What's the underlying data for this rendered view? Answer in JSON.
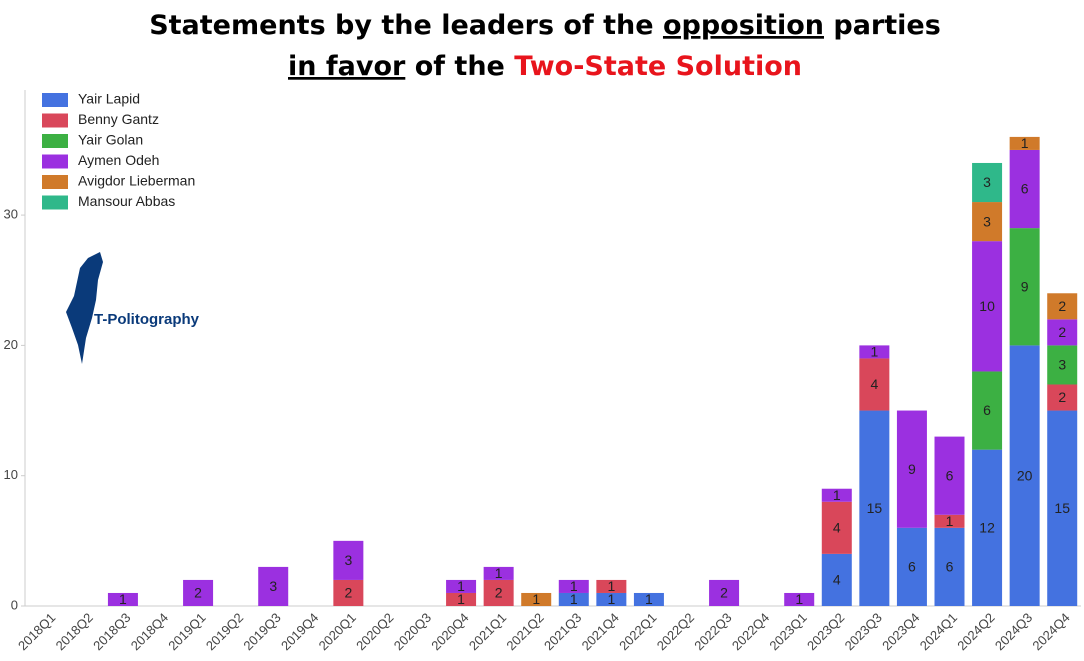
{
  "chart_data": {
    "type": "stacked_bar",
    "title_parts": [
      "Statements by the leaders of the ",
      "opposition",
      " parties",
      "in favor",
      " of the ",
      "Two-State Solution"
    ],
    "annotation": "T-Politography",
    "categories": [
      "2018Q1",
      "2018Q2",
      "2018Q3",
      "2018Q4",
      "2019Q1",
      "2019Q2",
      "2019Q3",
      "2019Q4",
      "2020Q1",
      "2020Q2",
      "2020Q3",
      "2020Q4",
      "2021Q1",
      "2021Q2",
      "2021Q3",
      "2021Q4",
      "2022Q1",
      "2022Q2",
      "2022Q3",
      "2022Q4",
      "2023Q1",
      "2023Q2",
      "2023Q3",
      "2023Q4",
      "2024Q1",
      "2024Q2",
      "2024Q3",
      "2024Q4"
    ],
    "series": [
      {
        "name": "Yair Lapid",
        "color": "#4472e0",
        "values": [
          0,
          0,
          0,
          0,
          0,
          0,
          0,
          0,
          0,
          0,
          0,
          0,
          0,
          0,
          1,
          1,
          1,
          0,
          0,
          0,
          0,
          4,
          15,
          6,
          6,
          12,
          20,
          15
        ]
      },
      {
        "name": "Benny Gantz",
        "color": "#d9475a",
        "values": [
          0,
          0,
          0,
          0,
          0,
          0,
          0,
          0,
          2,
          0,
          0,
          1,
          2,
          0,
          0,
          1,
          0,
          0,
          0,
          0,
          0,
          4,
          4,
          0,
          1,
          0,
          0,
          2
        ]
      },
      {
        "name": "Yair Golan",
        "color": "#3cb043",
        "values": [
          0,
          0,
          0,
          0,
          0,
          0,
          0,
          0,
          0,
          0,
          0,
          0,
          0,
          0,
          0,
          0,
          0,
          0,
          0,
          0,
          0,
          0,
          0,
          0,
          0,
          6,
          9,
          3
        ]
      },
      {
        "name": "Aymen Odeh",
        "color": "#9b30e0",
        "values": [
          0,
          0,
          1,
          0,
          2,
          0,
          3,
          0,
          3,
          0,
          0,
          1,
          1,
          0,
          1,
          0,
          0,
          0,
          2,
          0,
          1,
          1,
          1,
          9,
          6,
          10,
          6,
          2
        ]
      },
      {
        "name": "Avigdor Lieberman",
        "color": "#d07a2a",
        "values": [
          0,
          0,
          0,
          0,
          0,
          0,
          0,
          0,
          0,
          0,
          0,
          0,
          0,
          1,
          0,
          0,
          0,
          0,
          0,
          0,
          0,
          0,
          0,
          0,
          0,
          3,
          1,
          2
        ]
      },
      {
        "name": "Mansour Abbas",
        "color": "#2fb88a",
        "values": [
          0,
          0,
          0,
          0,
          0,
          0,
          0,
          0,
          0,
          0,
          0,
          0,
          0,
          0,
          0,
          0,
          0,
          0,
          0,
          0,
          0,
          0,
          0,
          0,
          0,
          3,
          0,
          0
        ]
      }
    ],
    "ylim": [
      0,
      39.6
    ],
    "yticks": [
      0,
      10,
      20,
      30
    ],
    "grid": false,
    "legend": "top-left"
  }
}
